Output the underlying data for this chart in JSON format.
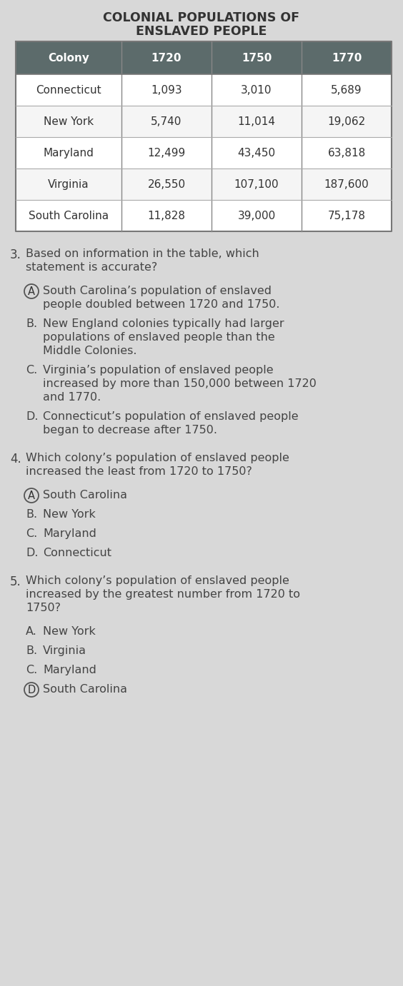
{
  "title_line1": "COLONIAL POPULATIONS OF",
  "title_line2": "ENSLAVED PEOPLE",
  "table_headers": [
    "Colony",
    "1720",
    "1750",
    "1770"
  ],
  "table_rows": [
    [
      "Connecticut",
      "1,093",
      "3,010",
      "5,689"
    ],
    [
      "New York",
      "5,740",
      "11,014",
      "19,062"
    ],
    [
      "Maryland",
      "12,499",
      "43,450",
      "63,818"
    ],
    [
      "Virginia",
      "26,550",
      "107,100",
      "187,600"
    ],
    [
      "South Carolina",
      "11,828",
      "39,000",
      "75,178"
    ]
  ],
  "header_bg": "#5c6b6b",
  "header_text": "#ffffff",
  "row_bg_odd": "#f5f5f5",
  "row_bg_even": "#ffffff",
  "border_color": "#999999",
  "bg_color": "#d8d8d8",
  "text_color": "#333333",
  "q_color": "#444444",
  "q3_number": "3.",
  "q3_text": "Based on information in the table, which\nstatement is accurate?",
  "q3_options": [
    [
      "A",
      "South Carolina’s population of enslaved\npeople doubled between 1720 and 1750.",
      true
    ],
    [
      "B.",
      "New England colonies typically had larger\npopulations of enslaved people than the\nMiddle Colonies.",
      false
    ],
    [
      "C.",
      "Virginia’s population of enslaved people\nincreased by more than 150,000 between 1720\nand 1770.",
      false
    ],
    [
      "D.",
      "Connecticut’s population of enslaved people\nbegan to decrease after 1750.",
      false
    ]
  ],
  "q4_number": "4.",
  "q4_text": "Which colony’s population of enslaved people\nincreased the least from 1720 to 1750?",
  "q4_options": [
    [
      "A",
      "South Carolina",
      true
    ],
    [
      "B.",
      "New York",
      false
    ],
    [
      "C.",
      "Maryland",
      false
    ],
    [
      "D.",
      "Connecticut",
      false
    ]
  ],
  "q5_number": "5.",
  "q5_text": "Which colony’s population of enslaved people\nincreased by the greatest number from 1720 to\n1750?",
  "q5_options": [
    [
      "A.",
      "New York",
      false
    ],
    [
      "B.",
      "Virginia",
      false
    ],
    [
      "C.",
      "Maryland",
      false
    ],
    [
      "D",
      "South Carolina",
      true
    ]
  ],
  "fig_width": 5.64,
  "fig_height": 13.81,
  "dpi": 100
}
